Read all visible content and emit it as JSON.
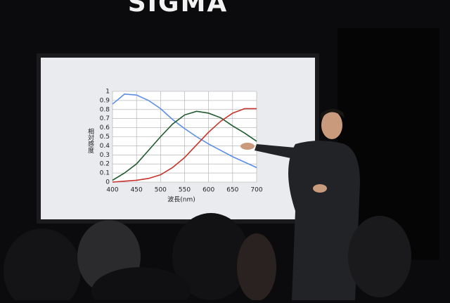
{
  "sign": "SIGMA",
  "chart_data": {
    "type": "line",
    "ylabel": "相対感度",
    "xlabel": "波長(nm)",
    "x": [
      400,
      425,
      450,
      475,
      500,
      525,
      550,
      575,
      600,
      625,
      650,
      675,
      700
    ],
    "series": [
      {
        "color": "#5b8ee6",
        "values": [
          0.86,
          0.97,
          0.96,
          0.9,
          0.81,
          0.69,
          0.59,
          0.5,
          0.42,
          0.35,
          0.28,
          0.22,
          0.16
        ]
      },
      {
        "color": "#1f5a2e",
        "values": [
          0.02,
          0.1,
          0.2,
          0.35,
          0.5,
          0.64,
          0.74,
          0.78,
          0.76,
          0.71,
          0.62,
          0.54,
          0.45
        ]
      },
      {
        "color": "#c8322a",
        "values": [
          0,
          0.01,
          0.02,
          0.04,
          0.08,
          0.16,
          0.27,
          0.41,
          0.55,
          0.67,
          0.76,
          0.81,
          0.81
        ]
      }
    ],
    "xlim": [
      400,
      700
    ],
    "xticks": [
      400,
      450,
      500,
      550,
      600,
      650,
      700
    ],
    "ylim": [
      0,
      1
    ],
    "yticks": [
      0,
      0.1,
      0.2,
      0.3,
      0.4,
      0.5,
      0.6,
      0.7,
      0.8,
      0.9,
      1
    ],
    "grid": true
  }
}
